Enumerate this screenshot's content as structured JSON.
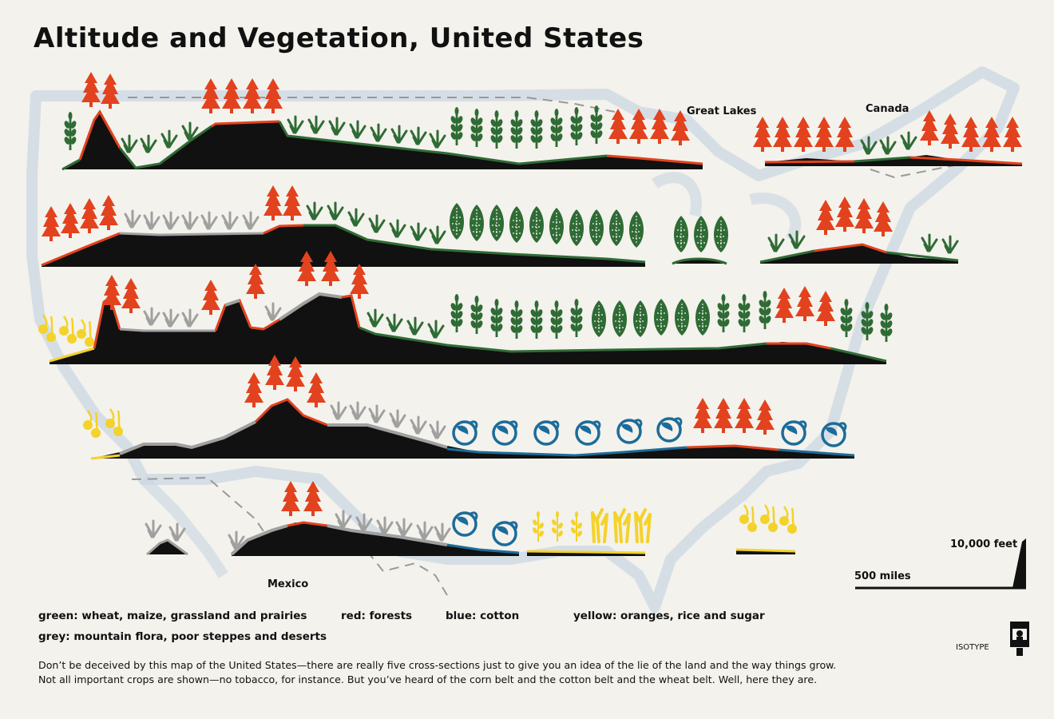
{
  "title": "Altitude and Vegetation, United States",
  "labels": {
    "great_lakes": "Great Lakes",
    "canada": "Canada",
    "mexico": "Mexico"
  },
  "scale": {
    "height": "10,000 feet",
    "distance": "500 miles"
  },
  "legend": {
    "green": "green: wheat, maize, grassland and prairies",
    "red": "red: forests",
    "blue": "blue: cotton",
    "yellow": "yellow: oranges, rice and sugar",
    "grey": "grey: mountain flora, poor steppes and deserts"
  },
  "caption": "Don’t be deceived by this map of the United States—there are really five cross-sections just to give you an idea of the lie of the land and the way things grow.  Not all important crops are shown—no tobacco, for instance.  But you’ve heard of the corn belt and the cotton belt and the wheat belt.  Well, here they are.",
  "credit": "ISOTYPE",
  "colors": {
    "green": "#2f6b35",
    "red": "#e2421e",
    "blue": "#1c6c9a",
    "yellow": "#f4d22a",
    "grey": "#a0a0a0",
    "land": "#111111",
    "map": "#c9d6e2"
  },
  "icons": [
    "tree-icon",
    "grass-icon",
    "wheat-icon",
    "maize-icon",
    "cotton-icon",
    "orange-icon",
    "rice-icon",
    "sugar-cane-icon"
  ]
}
